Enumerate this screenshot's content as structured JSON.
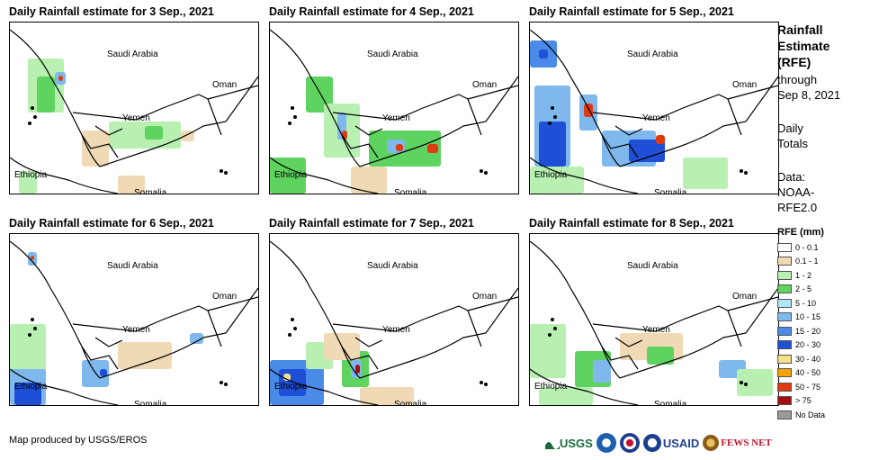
{
  "panels": [
    {
      "title": "Daily Rainfall estimate for 3 Sep., 2021",
      "labels": {
        "saudi": "Saudi Arabia",
        "oman": "Oman",
        "yemen": "Yemen",
        "ethiopia": "Ethiopia",
        "somalia": "Somalia"
      }
    },
    {
      "title": "Daily Rainfall estimate for 4 Sep., 2021",
      "labels": {
        "saudi": "Saudi Arabia",
        "oman": "Oman",
        "yemen": "Yemen",
        "ethiopia": "Ethiopia",
        "somalia": "Somalia"
      }
    },
    {
      "title": "Daily Rainfall estimate for 5 Sep., 2021",
      "labels": {
        "saudi": "Saudi Arabia",
        "oman": "Oman",
        "yemen": "Yemen",
        "ethiopia": "Ethiopia",
        "somalia": "Somalia"
      }
    },
    {
      "title": "Daily Rainfall estimate for 6 Sep., 2021",
      "labels": {
        "saudi": "Saudi Arabia",
        "oman": "Oman",
        "yemen": "Yemen",
        "ethiopia": "Ethiopia",
        "somalia": "Somalia"
      }
    },
    {
      "title": "Daily Rainfall estimate for 7 Sep., 2021",
      "labels": {
        "saudi": "Saudi Arabia",
        "oman": "Oman",
        "yemen": "Yemen",
        "ethiopia": "Ethiopia",
        "somalia": "Somalia"
      }
    },
    {
      "title": "Daily Rainfall estimate for 8 Sep., 2021",
      "labels": {
        "saudi": "Saudi Arabia",
        "oman": "Oman",
        "yemen": "Yemen",
        "ethiopia": "Ethiopia",
        "somalia": "Somalia"
      }
    }
  ],
  "sidebar": {
    "title_line1": "Rainfall",
    "title_line2": "Estimate",
    "title_line3": "(RFE)",
    "through": "through",
    "date": "Sep 8, 2021",
    "daily": "Daily",
    "totals": "Totals",
    "data_label": "Data:",
    "data_source1": "NOAA-",
    "data_source2": "RFE2.0"
  },
  "legend": {
    "title": "RFE (mm)",
    "items": [
      {
        "label": "0 - 0.1",
        "color": "#ffffff"
      },
      {
        "label": "0.1 - 1",
        "color": "#f0d9b5"
      },
      {
        "label": "1 - 2",
        "color": "#b7f0b0"
      },
      {
        "label": "2 - 5",
        "color": "#5fd35f"
      },
      {
        "label": "5 - 10",
        "color": "#b0e6f5"
      },
      {
        "label": "10 - 15",
        "color": "#7fb8ec"
      },
      {
        "label": "15 - 20",
        "color": "#4a8be8"
      },
      {
        "label": "20 - 30",
        "color": "#1f4fd6"
      },
      {
        "label": "30 - 40",
        "color": "#f5e08c"
      },
      {
        "label": "40 - 50",
        "color": "#f5a300"
      },
      {
        "label": "50 - 75",
        "color": "#e03a10"
      },
      {
        "label": "> 75",
        "color": "#a01010"
      },
      {
        "label": "No Data",
        "color": "#9a9a9a"
      }
    ]
  },
  "footer": {
    "credit": "Map produced by USGS/EROS"
  },
  "logos": {
    "usgs": "USGS",
    "usaid": "USAID",
    "fewsnet": "FEWS NET"
  },
  "colors": {
    "usgs_green": "#1a6b3a",
    "usaid_blue": "#1c3f8f",
    "usaid_red": "#c8102e",
    "fews_brown": "#8a5a1a"
  }
}
